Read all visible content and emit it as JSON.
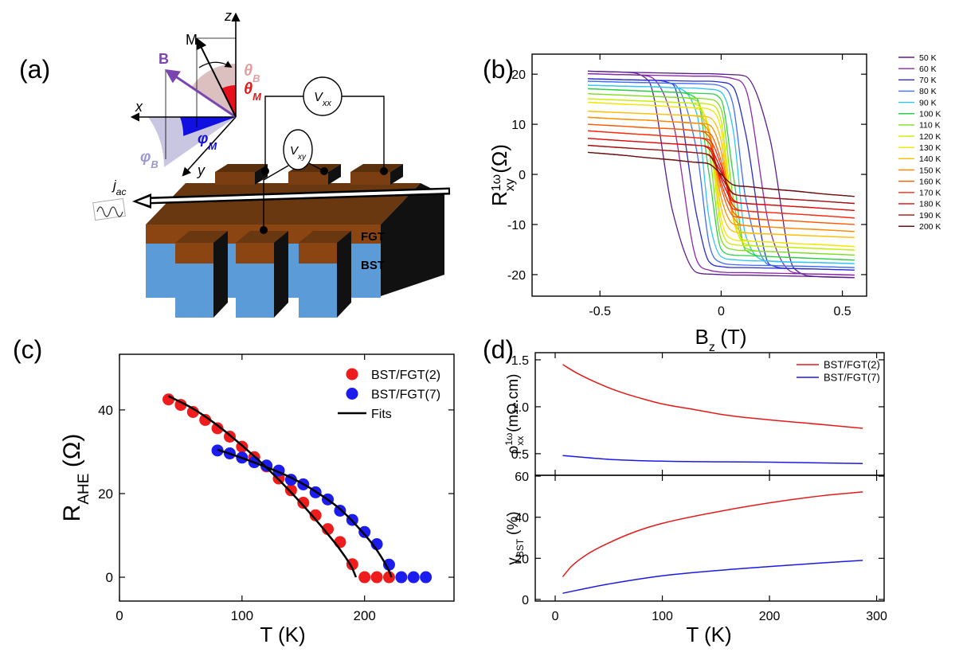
{
  "diagram": {
    "panel": "(a)",
    "axes": {
      "z": "z",
      "x": "x",
      "y": "y"
    },
    "vectors": {
      "M": "M",
      "B": "B"
    },
    "angles": {
      "theta_B": [
        "θ",
        "B"
      ],
      "theta_M": [
        "θ",
        "M"
      ],
      "phi_M": [
        "φ",
        "M"
      ],
      "phi_B": [
        "φ",
        "B"
      ]
    },
    "voltages": {
      "Vxx": [
        "V",
        "xx"
      ],
      "Vxy": [
        "V",
        "xy"
      ]
    },
    "current": [
      "j",
      "ac"
    ],
    "layers": {
      "top": "FGT",
      "bottom": "BST"
    }
  },
  "chart_data": [
    {
      "type": "line",
      "panel": "(b)",
      "ylabel": [
        {
          "text": "R"
        },
        {
          "text": "1ω",
          "shift": "super"
        },
        {
          "text": "xy",
          "shift": "sub"
        },
        {
          "text": "(Ω)"
        }
      ],
      "xlabel": [
        {
          "text": "B"
        },
        {
          "text": "z",
          "shift": "sub"
        },
        {
          "text": "(T)"
        }
      ],
      "xlim": [
        -0.78,
        0.6
      ],
      "ylim": [
        -24.3,
        24
      ],
      "xticks": [
        -0.5,
        0,
        0.5
      ],
      "yticks": [
        -20,
        -10,
        0,
        10,
        20
      ],
      "x": [
        -0.55,
        -0.4,
        -0.3,
        -0.2,
        -0.1,
        -0.05,
        0,
        0.05,
        0.1,
        0.2,
        0.3,
        0.4,
        0.55
      ],
      "series": [
        {
          "name": "50 K",
          "color": "#5a1d8c",
          "values": [
            20.6,
            20.4,
            18.7,
            -7.4,
            -19.6,
            -19.9,
            -20.0,
            -20.1,
            -20.1,
            -20.2,
            -20.3,
            -20.4,
            -20.6
          ],
          "values_up": [
            20.6,
            20.4,
            20.3,
            20.2,
            20.1,
            20.1,
            20.0,
            19.9,
            19.6,
            7.4,
            -18.7,
            -20.4,
            -20.6
          ]
        },
        {
          "name": "60 K",
          "color": "#8a2aa8",
          "values": [
            20.1,
            19.9,
            19.6,
            10.7,
            -17.2,
            -19.1,
            -19.5,
            -19.6,
            -19.6,
            -19.7,
            -19.8,
            -19.9,
            -20.1
          ],
          "values_up": [
            20.1,
            19.9,
            19.8,
            19.7,
            19.6,
            19.6,
            19.5,
            19.1,
            17.2,
            -10.7,
            -19.6,
            -19.9,
            -20.1
          ]
        },
        {
          "name": "70 K",
          "color": "#2a2ad0",
          "values": [
            19.1,
            18.9,
            18.8,
            18.0,
            -8.4,
            -17.4,
            -18.4,
            -18.6,
            -18.6,
            -18.7,
            -18.8,
            -18.9,
            -19.1
          ],
          "values_up": [
            19.1,
            18.9,
            18.8,
            18.7,
            18.6,
            18.6,
            18.4,
            17.4,
            8.4,
            -18.0,
            -18.8,
            -18.9,
            -19.1
          ]
        },
        {
          "name": "80 K",
          "color": "#3f6cff",
          "values": [
            18.6,
            18.4,
            18.3,
            18.1,
            4.5,
            -13.7,
            -17.6,
            -18.0,
            -18.1,
            -18.2,
            -18.3,
            -18.4,
            -18.6
          ],
          "values_up": [
            18.6,
            18.4,
            18.3,
            18.2,
            18.1,
            18.0,
            17.6,
            13.7,
            -4.5,
            -18.1,
            -18.3,
            -18.4,
            -18.6
          ]
        },
        {
          "name": "90 K",
          "color": "#2ec4f0",
          "values": [
            17.8,
            17.6,
            17.5,
            17.3,
            12.0,
            -8.7,
            -16.4,
            -17.0,
            -17.2,
            -17.3,
            -17.5,
            -17.6,
            -17.8
          ],
          "values_up": [
            17.8,
            17.6,
            17.5,
            17.3,
            17.2,
            17.0,
            16.4,
            8.7,
            -12.0,
            -17.3,
            -17.5,
            -17.6,
            -17.8
          ]
        },
        {
          "name": "100 K",
          "color": "#2fcf4a",
          "values": [
            17.1,
            16.8,
            16.6,
            16.4,
            15.1,
            0.1,
            -14.9,
            -16.1,
            -16.2,
            -16.4,
            -16.6,
            -16.8,
            -17.1
          ],
          "values_up": [
            17.1,
            16.8,
            16.6,
            16.4,
            16.2,
            16.1,
            14.9,
            -0.1,
            -15.1,
            -16.4,
            -16.6,
            -16.8,
            -17.1
          ]
        },
        {
          "name": "110 K",
          "color": "#7ddf1e",
          "values": [
            16.1,
            15.8,
            15.6,
            15.4,
            14.7,
            4.9,
            -13.0,
            -15.0,
            -15.2,
            -15.4,
            -15.6,
            -15.8,
            -16.1
          ],
          "values_up": [
            16.1,
            15.8,
            15.6,
            15.4,
            15.2,
            15.0,
            13.0,
            -4.9,
            -14.7,
            -15.4,
            -15.6,
            -15.8,
            -16.1
          ]
        },
        {
          "name": "120 K",
          "color": "#c6ee00",
          "values": [
            15.1,
            14.8,
            14.6,
            14.4,
            13.9,
            8.3,
            -10.7,
            -14.0,
            -14.2,
            -14.4,
            -14.6,
            -14.8,
            -15.1
          ],
          "values_up": [
            15.1,
            14.8,
            14.6,
            14.4,
            14.2,
            14.0,
            10.7,
            -8.3,
            -13.9,
            -14.4,
            -14.6,
            -14.8,
            -15.1
          ]
        },
        {
          "name": "130 K",
          "color": "#f2e600",
          "values": [
            14.4,
            14.0,
            13.8,
            13.5,
            13.1,
            9.0,
            -8.9,
            -13.0,
            -13.3,
            -13.5,
            -13.8,
            -14.0,
            -14.4
          ],
          "values_up": [
            14.4,
            14.0,
            13.8,
            13.5,
            13.3,
            13.0,
            8.9,
            -9.0,
            -13.1,
            -13.5,
            -13.8,
            -14.0,
            -14.4
          ]
        },
        {
          "name": "140 K",
          "color": "#ffbe00",
          "values": [
            12.6,
            12.3,
            12.1,
            11.9,
            11.6,
            8.9,
            -6.7,
            -11.4,
            -11.7,
            -11.9,
            -12.1,
            -12.3,
            -12.6
          ],
          "values_up": [
            12.6,
            12.3,
            12.1,
            11.9,
            11.7,
            11.4,
            6.7,
            -8.9,
            -11.6,
            -11.9,
            -12.1,
            -12.3,
            -12.6
          ]
        },
        {
          "name": "150 K",
          "color": "#ff8c00",
          "values": [
            11.4,
            11.0,
            10.8,
            10.5,
            10.2,
            8.4,
            -4.6,
            -9.9,
            -10.2,
            -10.5,
            -10.8,
            -11.0,
            -11.4
          ],
          "values_up": [
            11.4,
            11.0,
            10.8,
            10.5,
            10.2,
            9.9,
            4.6,
            -8.4,
            -10.2,
            -10.5,
            -10.8,
            -11.0,
            -11.4
          ]
        },
        {
          "name": "160 K",
          "color": "#ff5a00",
          "values": [
            10.0,
            9.6,
            9.3,
            9.1,
            8.7,
            7.5,
            -2.7,
            -8.3,
            -8.7,
            -9.1,
            -9.3,
            -9.6,
            -10.0
          ],
          "values_up": [
            10.0,
            9.6,
            9.3,
            9.1,
            8.7,
            8.3,
            2.7,
            -7.5,
            -8.7,
            -9.1,
            -9.3,
            -9.6,
            -10.0
          ]
        },
        {
          "name": "170 K",
          "color": "#ff2a10",
          "values": [
            8.7,
            8.2,
            7.9,
            7.6,
            7.3,
            6.3,
            -1.8,
            -6.9,
            -7.3,
            -7.6,
            -7.9,
            -8.2,
            -8.7
          ],
          "values_up": [
            8.7,
            8.2,
            7.9,
            7.6,
            7.3,
            6.9,
            1.8,
            -6.3,
            -7.3,
            -7.6,
            -7.9,
            -8.2,
            -8.7
          ]
        },
        {
          "name": "180 K",
          "color": "#dd0a0a",
          "values": [
            7.2,
            6.7,
            6.4,
            6.1,
            5.8,
            5.1,
            -0.9,
            -5.4,
            -5.8,
            -6.1,
            -6.4,
            -6.7,
            -7.2
          ],
          "values_up": [
            7.2,
            6.7,
            6.4,
            6.1,
            5.8,
            5.4,
            0.9,
            -5.1,
            -5.8,
            -6.1,
            -6.4,
            -6.7,
            -7.2
          ]
        },
        {
          "name": "190 K",
          "color": "#a01414",
          "values": [
            5.8,
            5.3,
            5.0,
            4.7,
            4.3,
            3.8,
            -0.4,
            -3.9,
            -4.3,
            -4.7,
            -5.0,
            -5.3,
            -5.8
          ],
          "values_up": [
            5.8,
            5.3,
            5.0,
            4.7,
            4.3,
            3.9,
            0.4,
            -3.8,
            -4.3,
            -4.7,
            -5.0,
            -5.3,
            -5.8
          ]
        },
        {
          "name": "200 K",
          "color": "#6e1010",
          "values": [
            4.4,
            3.8,
            3.3,
            2.9,
            2.4,
            2.1,
            0,
            -2.1,
            -2.4,
            -2.9,
            -3.3,
            -3.8,
            -4.4
          ],
          "values_up": [
            4.4,
            3.8,
            3.3,
            2.9,
            2.4,
            2.1,
            0,
            -2.1,
            -2.4,
            -2.9,
            -3.3,
            -3.8,
            -4.4
          ]
        }
      ]
    },
    {
      "type": "scatter",
      "panel": "(c)",
      "ylabel": [
        {
          "text": "R"
        },
        {
          "text": "AHE",
          "shift": "sub"
        },
        {
          "text": "(Ω)"
        }
      ],
      "xlabel": [
        {
          "text": "T (K)"
        }
      ],
      "xlim": [
        0,
        273
      ],
      "ylim": [
        -5.7,
        53.3
      ],
      "xticks": [
        0,
        100,
        200
      ],
      "yticks": [
        0,
        20,
        40
      ],
      "series": [
        {
          "name": "BST/FGT(2)",
          "color": "#ee1c1c",
          "x": [
            40,
            50,
            60,
            70,
            80,
            90,
            100,
            110,
            120,
            130,
            140,
            150,
            160,
            170,
            180,
            190,
            200,
            210,
            220
          ],
          "values": [
            42.5,
            41.2,
            39.5,
            37.6,
            35.6,
            33.6,
            31.2,
            28.7,
            26.5,
            23.6,
            20.8,
            17.8,
            14.8,
            11.5,
            8.4,
            3.1,
            0,
            0,
            0
          ]
        },
        {
          "name": "BST/FGT(7)",
          "color": "#1c1cee",
          "x": [
            80,
            90,
            100,
            110,
            120,
            130,
            140,
            150,
            160,
            170,
            180,
            190,
            200,
            210,
            220,
            230,
            240,
            250
          ],
          "values": [
            30.3,
            29.6,
            28.6,
            27.5,
            26.7,
            25.5,
            23.3,
            22.2,
            20.3,
            18.6,
            15.9,
            13.7,
            10.8,
            7.9,
            3.0,
            0,
            0,
            0
          ]
        },
        {
          "name": "Fits",
          "type": "line",
          "color": "#000000",
          "x": [
            40,
            60,
            80,
            100,
            120,
            140,
            160,
            170,
            180,
            190,
            193,
            null,
            80,
            100,
            120,
            140,
            160,
            180,
            200,
            210,
            220,
            222
          ],
          "values": [
            43.3,
            40.3,
            36.3,
            31.5,
            26.2,
            20.3,
            13.8,
            10.3,
            6.6,
            2.1,
            0,
            null,
            30.5,
            28.5,
            26.3,
            23.8,
            20.5,
            16.3,
            10.2,
            6.5,
            1.5,
            0
          ]
        }
      ]
    },
    {
      "type": "line",
      "panel": "(d)",
      "ylabel": [
        {
          "text": "ρ"
        },
        {
          "text": "1ω",
          "shift": "super"
        },
        {
          "text": "xx",
          "shift": "sub"
        },
        {
          "text": "(mΩ.cm)"
        }
      ],
      "xlim": [
        -18.6,
        307
      ],
      "ylim": [
        0.27,
        1.576
      ],
      "xticks": [
        0,
        100,
        200,
        300
      ],
      "xtick_labels": false,
      "yticks": [
        0.5,
        {
          "value": 1,
          "label": "1.0"
        },
        1.5
      ],
      "series": [
        {
          "name": "BST/FGT(2)",
          "color": "#e41a1a",
          "x": [
            7,
            20,
            40,
            60,
            80,
            100,
            130,
            160,
            200,
            250,
            287
          ],
          "values": [
            1.45,
            1.36,
            1.25,
            1.16,
            1.09,
            1.03,
            0.97,
            0.91,
            0.86,
            0.81,
            0.77
          ]
        },
        {
          "name": "BST/FGT(7)",
          "color": "#1a1ae4",
          "x": [
            7,
            50,
            100,
            200,
            287
          ],
          "values": [
            0.48,
            0.44,
            0.42,
            0.41,
            0.395
          ]
        }
      ]
    },
    {
      "type": "line",
      "ylabel": [
        {
          "text": "γ"
        },
        {
          "text": "BST",
          "shift": "sub"
        },
        {
          "text": "(%)"
        }
      ],
      "xlabel": [
        {
          "text": "T (K)"
        }
      ],
      "xlim": [
        -18.6,
        307
      ],
      "ylim": [
        -0.8,
        60.4
      ],
      "xticks": [
        0,
        100,
        200,
        300
      ],
      "yticks": [
        0,
        20,
        40,
        60
      ],
      "series": [
        {
          "color": "#e41a1a",
          "x": [
            7,
            15,
            30,
            50,
            75,
            100,
            150,
            200,
            250,
            287
          ],
          "values": [
            11,
            16,
            22,
            27.5,
            33,
            37,
            42.5,
            47,
            50.5,
            52.3
          ]
        },
        {
          "color": "#1a1ae4",
          "x": [
            7,
            30,
            50,
            100,
            150,
            200,
            250,
            287
          ],
          "values": [
            3,
            5.5,
            7.5,
            11.5,
            14,
            16,
            17.8,
            19
          ]
        }
      ]
    }
  ]
}
